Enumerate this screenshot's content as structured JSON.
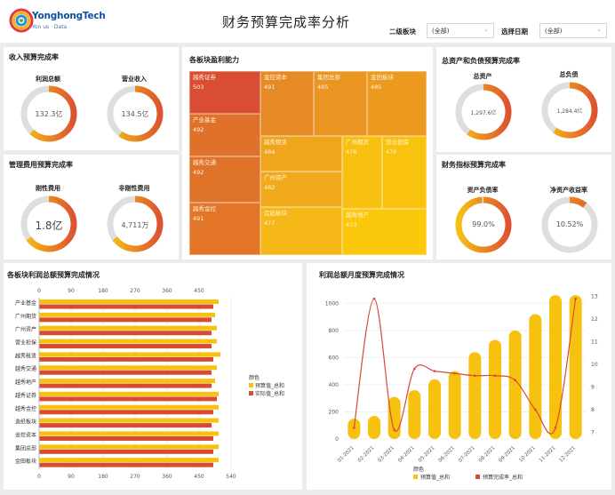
{
  "header": {
    "logo_name": "YonghongTech",
    "logo_tagline": "Yon us · Data",
    "title": "财务预算完成率分析",
    "filters": [
      {
        "label": "二级板块",
        "value": "(全部)"
      },
      {
        "label": "选择日期",
        "value": "(全部)"
      }
    ]
  },
  "income": {
    "title": "收入预算完成率",
    "gauges": [
      {
        "label": "利润总额",
        "value": "132.3亿",
        "fraction": 0.62
      },
      {
        "label": "营业收入",
        "value": "134.5亿",
        "fraction": 0.6
      }
    ]
  },
  "expense": {
    "title": "管理费用预算完成率",
    "gauges": [
      {
        "label": "刚性费用",
        "value": "1.8亿",
        "fraction": 0.65
      },
      {
        "label": "非刚性费用",
        "value": "4,711万",
        "fraction": 0.65
      }
    ]
  },
  "treemap": {
    "title": "各板块盈利能力",
    "cells": [
      {
        "name": "越秀证券",
        "value": "503",
        "color": "#d84d33"
      },
      {
        "name": "产业基金",
        "value": "492",
        "color": "#e0712a"
      },
      {
        "name": "越秀交通",
        "value": "492",
        "color": "#e0732a"
      },
      {
        "name": "越秀金控",
        "value": "491",
        "color": "#e27528"
      },
      {
        "name": "金控资本",
        "value": "491",
        "color": "#e68a25"
      },
      {
        "name": "集团总部",
        "value": "485",
        "color": "#ea9522"
      },
      {
        "name": "金田板块",
        "value": "485",
        "color": "#ed9a20"
      },
      {
        "name": "越秀租赁",
        "value": "484",
        "color": "#f0a61c"
      },
      {
        "name": "广州资产",
        "value": "482",
        "color": "#f1aa1b"
      },
      {
        "name": "造纸板块",
        "value": "477",
        "color": "#f5b816"
      },
      {
        "name": "广州期货",
        "value": "476",
        "color": "#f8c010"
      },
      {
        "name": "营业担保",
        "value": "476",
        "color": "#f9c20e"
      },
      {
        "name": "越秀地产",
        "value": "473",
        "color": "#fcc80b"
      }
    ]
  },
  "assets": {
    "title": "总资产和负债预算完成率",
    "gauges": [
      {
        "label": "总资产",
        "value": "1,297.6亿",
        "fraction": 0.6
      },
      {
        "label": "总负债",
        "value": "1,284.4亿",
        "fraction": 0.6
      }
    ]
  },
  "indicators": {
    "title": "财务指标预算完成率",
    "gauges": [
      {
        "label": "资产负债率",
        "value": "99.0%",
        "fraction": 0.99
      },
      {
        "label": "净资产收益率",
        "value": "10.52%",
        "fraction": 0.1052
      }
    ]
  },
  "bar_chart": {
    "title": "各板块利润总额预算完成情况",
    "legend_title": "颜色",
    "legend": [
      {
        "name": "预算值_总和",
        "color": "#f7c20f"
      },
      {
        "name": "实际值_总和",
        "color": "#d94a33"
      }
    ]
  },
  "combo_chart": {
    "title": "利润总额月度预算完成情况",
    "legend_title": "颜色",
    "legend": [
      {
        "name": "预算值_总和",
        "color": "#f7c20f"
      },
      {
        "name": "预算完成率_总和",
        "color": "#d94a33"
      }
    ]
  },
  "chart_data": [
    {
      "type": "bar",
      "orientation": "horizontal",
      "title": "各板块利润总额预算完成情况",
      "categories": [
        "产业基金",
        "广州期货",
        "广州资产",
        "营业担保",
        "越秀租赁",
        "越秀交通",
        "越秀地产",
        "越秀证券",
        "越秀金控",
        "造纸板块",
        "金控资本",
        "集团总部",
        "金田板块"
      ],
      "series": [
        {
          "name": "预算值_总和",
          "values": [
            505,
            495,
            500,
            500,
            510,
            500,
            495,
            505,
            505,
            505,
            505,
            505,
            505
          ]
        },
        {
          "name": "实际值_总和",
          "values": [
            490,
            485,
            485,
            485,
            490,
            485,
            485,
            500,
            490,
            485,
            490,
            490,
            490
          ]
        }
      ],
      "xticks_top": [
        0,
        90,
        180,
        270,
        360,
        450
      ],
      "xticks_bottom": [
        0,
        90,
        180,
        270,
        360,
        450,
        540
      ],
      "xlim": [
        0,
        540
      ]
    },
    {
      "type": "bar",
      "title": "利润总额月度预算完成情况",
      "categories": [
        "01-2021",
        "02-2021",
        "03-2021",
        "04-2021",
        "05-2021",
        "06-2021",
        "07-2021",
        "08-2021",
        "09-2021",
        "10-2021",
        "11-2021",
        "12-2021"
      ],
      "series": [
        {
          "name": "预算值_总和",
          "values": [
            150,
            170,
            310,
            360,
            440,
            500,
            640,
            730,
            800,
            920,
            1060,
            1060
          ],
          "axis": "left"
        },
        {
          "name": "预算完成率_总和",
          "type": "line",
          "values": [
            7.2,
            12.9,
            7.1,
            9.8,
            9.7,
            9.6,
            9.5,
            9.5,
            9.3,
            8.0,
            7.2,
            12.9
          ],
          "axis": "right"
        }
      ],
      "yticks_left": [
        0,
        200,
        400,
        600,
        800,
        1000
      ],
      "ylim_left": [
        0,
        1100
      ],
      "yticks_right": [
        7,
        8,
        9,
        10,
        11,
        12,
        13
      ],
      "ylim_right": [
        6.7,
        13.3
      ]
    }
  ]
}
